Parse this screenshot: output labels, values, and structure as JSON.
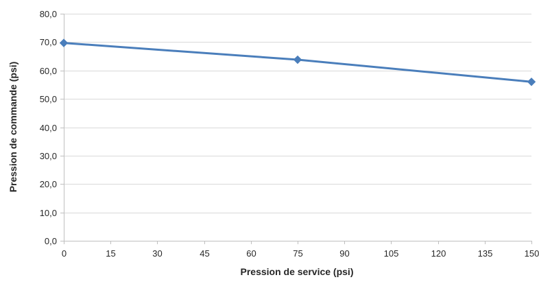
{
  "chart_data": {
    "type": "line",
    "title": "",
    "xlabel": "Pression de service (psi)",
    "ylabel": "Pression de commande (psi)",
    "xlim": [
      0,
      150
    ],
    "ylim": [
      0,
      80
    ],
    "x_ticks": [
      0,
      15,
      30,
      45,
      60,
      75,
      90,
      105,
      120,
      135,
      150
    ],
    "x_tick_labels": [
      "0",
      "15",
      "30",
      "45",
      "60",
      "75",
      "90",
      "105",
      "120",
      "135",
      "150"
    ],
    "y_ticks": [
      0,
      10,
      20,
      30,
      40,
      50,
      60,
      70,
      80
    ],
    "y_tick_labels": [
      "0,0",
      "10,0",
      "20,0",
      "30,0",
      "40,0",
      "50,0",
      "60,0",
      "70,0",
      "80,0"
    ],
    "grid": "horizontal",
    "legend": "none",
    "series": [
      {
        "marker": "diamond",
        "color": "#4a7ebb",
        "x": [
          0,
          75,
          150
        ],
        "y": [
          69.7,
          63.8,
          56.0
        ]
      }
    ],
    "colors": {
      "line": "#4a7ebb",
      "grid": "#d9d9d9",
      "axis": "#bfbfbf",
      "text": "#262626"
    }
  }
}
